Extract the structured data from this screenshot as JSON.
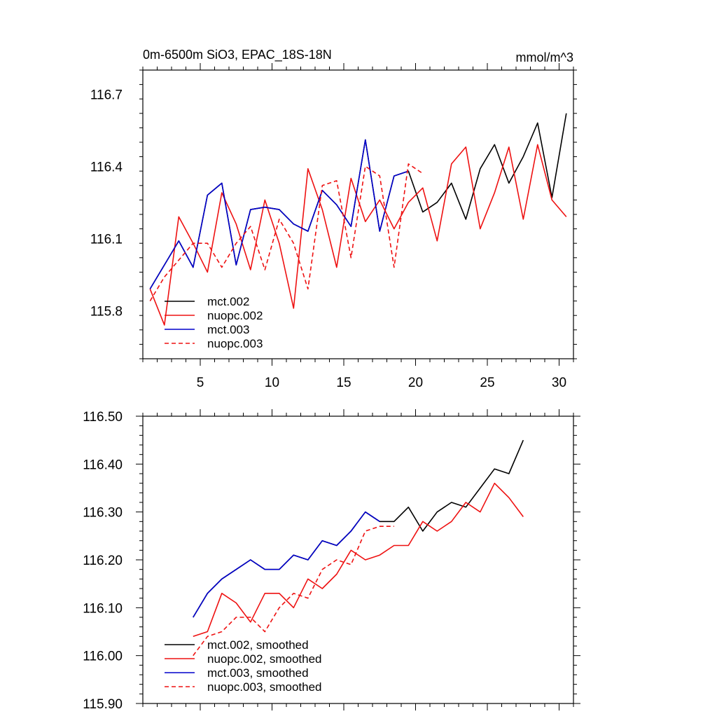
{
  "colors": {
    "mct.002": "#000000",
    "nuopc.002": "#ee1111",
    "mct.003": "#0000cc",
    "nuopc.003": "#ee1111"
  },
  "chart_data": [
    {
      "type": "line",
      "title": "0m-6500m SiO3, EPAC_18S-18N",
      "units_label": "mmol/m^3",
      "xlabel": "",
      "ylabel": "",
      "xlim": [
        1,
        31
      ],
      "ylim": [
        115.6,
        116.8
      ],
      "xticks": [
        5,
        10,
        15,
        20,
        25,
        30
      ],
      "yticks": [
        115.8,
        116.1,
        116.4,
        116.7
      ],
      "ytick_labels": [
        "115.8",
        "116.1",
        "116.4",
        "116.7"
      ],
      "show_xtick_labels": true,
      "legend_position": "bottom-left",
      "grid": false,
      "series": [
        {
          "name": "mct.002",
          "style": "solid",
          "color_key": "mct.002",
          "x": [
            1.5,
            2.5,
            3.5,
            4.5,
            5.5,
            6.5,
            7.5,
            8.5,
            9.5,
            10.5,
            11.5,
            12.5,
            13.5,
            14.5,
            15.5,
            16.5,
            17.5,
            18.5,
            19.5,
            20.5,
            21.5,
            22.5,
            23.5,
            24.5,
            25.5,
            26.5,
            27.5,
            28.5,
            29.5,
            30.5
          ],
          "y": [
            115.89,
            115.99,
            116.09,
            115.98,
            116.28,
            116.33,
            115.99,
            116.22,
            116.23,
            116.22,
            116.16,
            116.13,
            116.3,
            116.24,
            116.15,
            116.51,
            116.13,
            116.36,
            116.38,
            116.21,
            116.25,
            116.33,
            116.18,
            116.39,
            116.49,
            116.33,
            116.44,
            116.58,
            116.27,
            116.62
          ]
        },
        {
          "name": "nuopc.002",
          "style": "solid",
          "color_key": "nuopc.002",
          "x": [
            1.5,
            2.5,
            3.5,
            4.5,
            5.5,
            6.5,
            7.5,
            8.5,
            9.5,
            10.5,
            11.5,
            12.5,
            13.5,
            14.5,
            15.5,
            16.5,
            17.5,
            18.5,
            19.5,
            20.5,
            21.5,
            22.5,
            23.5,
            24.5,
            25.5,
            26.5,
            27.5,
            28.5,
            29.5,
            30.5
          ],
          "y": [
            115.89,
            115.74,
            116.19,
            116.08,
            115.96,
            116.29,
            116.16,
            115.97,
            116.26,
            116.08,
            115.81,
            116.39,
            116.22,
            115.98,
            116.35,
            116.17,
            116.26,
            116.14,
            116.25,
            116.31,
            116.09,
            116.41,
            116.48,
            116.14,
            116.29,
            116.48,
            116.18,
            116.49,
            116.26,
            116.19
          ]
        },
        {
          "name": "mct.003",
          "style": "solid",
          "color_key": "mct.003",
          "x": [
            1.5,
            2.5,
            3.5,
            4.5,
            5.5,
            6.5,
            7.5,
            8.5,
            9.5,
            10.5,
            11.5,
            12.5,
            13.5,
            14.5,
            15.5,
            16.5,
            17.5,
            18.5,
            19.5
          ],
          "y": [
            115.89,
            115.99,
            116.09,
            115.98,
            116.28,
            116.33,
            115.99,
            116.22,
            116.23,
            116.22,
            116.16,
            116.13,
            116.3,
            116.24,
            116.15,
            116.51,
            116.13,
            116.36,
            116.38
          ]
        },
        {
          "name": "nuopc.003",
          "style": "dashed",
          "color_key": "nuopc.003",
          "x": [
            1.5,
            2.5,
            3.5,
            4.5,
            5.5,
            6.5,
            7.5,
            8.5,
            9.5,
            10.5,
            11.5,
            12.5,
            13.5,
            14.5,
            15.5,
            16.5,
            17.5,
            18.5,
            19.5,
            20.5
          ],
          "y": [
            115.84,
            115.94,
            116.01,
            116.08,
            116.08,
            115.98,
            116.08,
            116.15,
            115.97,
            116.18,
            116.08,
            115.89,
            116.32,
            116.34,
            116.02,
            116.4,
            116.36,
            115.98,
            116.41,
            116.37
          ]
        }
      ]
    },
    {
      "type": "line",
      "title": "",
      "units_label": "",
      "xlabel": "",
      "ylabel": "",
      "xlim": [
        1,
        31
      ],
      "ylim": [
        115.9,
        116.5
      ],
      "xticks": [
        5,
        10,
        15,
        20,
        25,
        30
      ],
      "yticks": [
        115.9,
        116.0,
        116.1,
        116.2,
        116.3,
        116.4,
        116.5
      ],
      "ytick_labels": [
        "115.90",
        "116.00",
        "116.10",
        "116.20",
        "116.30",
        "116.40",
        "116.50"
      ],
      "show_xtick_labels": false,
      "legend_position": "bottom-left",
      "grid": false,
      "series": [
        {
          "name": "mct.002, smoothed",
          "style": "solid",
          "color_key": "mct.002",
          "x": [
            4.5,
            5.5,
            6.5,
            7.5,
            8.5,
            9.5,
            10.5,
            11.5,
            12.5,
            13.5,
            14.5,
            15.5,
            16.5,
            17.5,
            18.5,
            19.5,
            20.5,
            21.5,
            22.5,
            23.5,
            24.5,
            25.5,
            26.5,
            27.5
          ],
          "y": [
            116.08,
            116.13,
            116.16,
            116.18,
            116.2,
            116.18,
            116.18,
            116.21,
            116.2,
            116.24,
            116.23,
            116.26,
            116.3,
            116.28,
            116.28,
            116.31,
            116.26,
            116.3,
            116.32,
            116.31,
            116.35,
            116.39,
            116.38,
            116.45
          ]
        },
        {
          "name": "nuopc.002, smoothed",
          "style": "solid",
          "color_key": "nuopc.002",
          "x": [
            4.5,
            5.5,
            6.5,
            7.5,
            8.5,
            9.5,
            10.5,
            11.5,
            12.5,
            13.5,
            14.5,
            15.5,
            16.5,
            17.5,
            18.5,
            19.5,
            20.5,
            21.5,
            22.5,
            23.5,
            24.5,
            25.5,
            26.5,
            27.5
          ],
          "y": [
            116.04,
            116.05,
            116.13,
            116.11,
            116.07,
            116.13,
            116.13,
            116.1,
            116.16,
            116.14,
            116.17,
            116.22,
            116.2,
            116.21,
            116.23,
            116.23,
            116.28,
            116.26,
            116.28,
            116.32,
            116.3,
            116.36,
            116.33,
            116.29
          ]
        },
        {
          "name": "mct.003, smoothed",
          "style": "solid",
          "color_key": "mct.003",
          "x": [
            4.5,
            5.5,
            6.5,
            7.5,
            8.5,
            9.5,
            10.5,
            11.5,
            12.5,
            13.5,
            14.5,
            15.5,
            16.5,
            17.5
          ],
          "y": [
            116.08,
            116.13,
            116.16,
            116.18,
            116.2,
            116.18,
            116.18,
            116.21,
            116.2,
            116.24,
            116.23,
            116.26,
            116.3,
            116.28
          ]
        },
        {
          "name": "nuopc.003, smoothed",
          "style": "dashed",
          "color_key": "nuopc.003",
          "x": [
            4.5,
            5.5,
            6.5,
            7.5,
            8.5,
            9.5,
            10.5,
            11.5,
            12.5,
            13.5,
            14.5,
            15.5,
            16.5,
            17.5,
            18.5
          ],
          "y": [
            116.0,
            116.04,
            116.05,
            116.08,
            116.08,
            116.05,
            116.1,
            116.13,
            116.12,
            116.18,
            116.2,
            116.19,
            116.26,
            116.27,
            116.27
          ]
        }
      ]
    }
  ]
}
